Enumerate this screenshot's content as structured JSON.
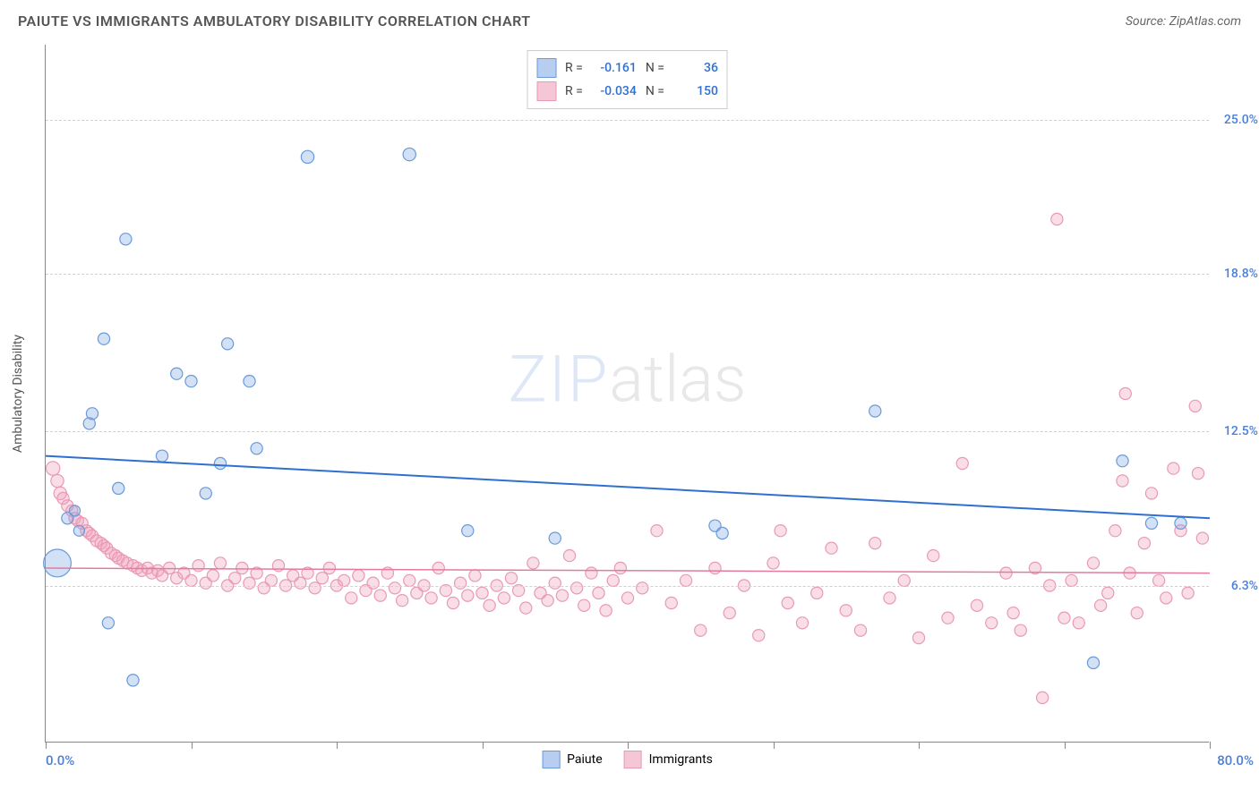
{
  "title": "PAIUTE VS IMMIGRANTS AMBULATORY DISABILITY CORRELATION CHART",
  "source": "Source: ZipAtlas.com",
  "ylabel": "Ambulatory Disability",
  "watermark": {
    "part1": "ZIP",
    "part2": "atlas"
  },
  "chart": {
    "type": "scatter",
    "xlim": [
      0,
      80
    ],
    "ylim": [
      0,
      28
    ],
    "x_min_label": "0.0%",
    "x_max_label": "80.0%",
    "xtick_positions": [
      0,
      10,
      20,
      30,
      40,
      50,
      60,
      70,
      80
    ],
    "y_gridlines": [
      6.3,
      12.5,
      18.8,
      25.0
    ],
    "y_gridline_labels": [
      "6.3%",
      "12.5%",
      "18.8%",
      "25.0%"
    ],
    "y_tick_color": "#4a7fd8",
    "x_label_color": "#4a7fd8",
    "background_color": "#ffffff",
    "grid_color": "#d0d0d0",
    "axis_color": "#888888"
  },
  "series": [
    {
      "name": "Paiute",
      "color_fill": "rgba(130,170,230,0.35)",
      "color_stroke": "#6a9ad8",
      "swatch_fill": "#b8cef0",
      "swatch_border": "#6a9ad8",
      "R": "-0.161",
      "N": "36",
      "trend": {
        "x1": 0,
        "y1": 11.5,
        "x2": 80,
        "y2": 9.0,
        "color": "#2f6fd0",
        "width": 2
      },
      "points": [
        [
          0.8,
          7.2,
          28
        ],
        [
          1.5,
          9.0,
          12
        ],
        [
          2,
          9.3,
          11
        ],
        [
          2.3,
          8.5,
          11
        ],
        [
          3,
          12.8,
          12
        ],
        [
          3.2,
          13.2,
          12
        ],
        [
          4,
          16.2,
          12
        ],
        [
          4.3,
          4.8,
          12
        ],
        [
          5,
          10.2,
          12
        ],
        [
          5.5,
          20.2,
          12
        ],
        [
          6,
          2.5,
          12
        ],
        [
          8,
          11.5,
          12
        ],
        [
          9,
          14.8,
          12
        ],
        [
          10,
          14.5,
          12
        ],
        [
          11,
          10.0,
          12
        ],
        [
          12,
          11.2,
          12
        ],
        [
          12.5,
          16.0,
          12
        ],
        [
          14,
          14.5,
          12
        ],
        [
          14.5,
          11.8,
          12
        ],
        [
          18,
          23.5,
          13
        ],
        [
          25,
          23.6,
          13
        ],
        [
          29,
          8.5,
          12
        ],
        [
          35,
          8.2,
          12
        ],
        [
          46,
          8.7,
          12
        ],
        [
          46.5,
          8.4,
          12
        ],
        [
          57,
          13.3,
          12
        ],
        [
          72,
          3.2,
          12
        ],
        [
          74,
          11.3,
          12
        ],
        [
          76,
          8.8,
          12
        ],
        [
          78,
          8.8,
          12
        ]
      ]
    },
    {
      "name": "Immigrants",
      "color_fill": "rgba(240,160,185,0.35)",
      "color_stroke": "#e89ab5",
      "swatch_fill": "#f5c6d6",
      "swatch_border": "#e89ab5",
      "R": "-0.034",
      "N": "150",
      "trend": {
        "x1": 0,
        "y1": 7.0,
        "x2": 80,
        "y2": 6.8,
        "color": "#e47aa0",
        "width": 1.5
      },
      "points": [
        [
          0.5,
          11.0,
          14
        ],
        [
          0.8,
          10.5,
          13
        ],
        [
          1,
          10.0,
          13
        ],
        [
          1.2,
          9.8,
          12
        ],
        [
          1.5,
          9.5,
          12
        ],
        [
          1.8,
          9.3,
          12
        ],
        [
          2,
          9.0,
          12
        ],
        [
          2.2,
          8.9,
          12
        ],
        [
          2.5,
          8.8,
          12
        ],
        [
          2.8,
          8.5,
          12
        ],
        [
          3,
          8.4,
          12
        ],
        [
          3.2,
          8.3,
          12
        ],
        [
          3.5,
          8.1,
          12
        ],
        [
          3.8,
          8.0,
          12
        ],
        [
          4,
          7.9,
          12
        ],
        [
          4.2,
          7.8,
          12
        ],
        [
          4.5,
          7.6,
          12
        ],
        [
          4.8,
          7.5,
          12
        ],
        [
          5,
          7.4,
          12
        ],
        [
          5.3,
          7.3,
          12
        ],
        [
          5.6,
          7.2,
          12
        ],
        [
          6,
          7.1,
          12
        ],
        [
          6.3,
          7.0,
          12
        ],
        [
          6.6,
          6.9,
          12
        ],
        [
          7,
          7.0,
          12
        ],
        [
          7.3,
          6.8,
          12
        ],
        [
          7.7,
          6.9,
          12
        ],
        [
          8,
          6.7,
          12
        ],
        [
          8.5,
          7.0,
          12
        ],
        [
          9,
          6.6,
          12
        ],
        [
          9.5,
          6.8,
          12
        ],
        [
          10,
          6.5,
          12
        ],
        [
          10.5,
          7.1,
          12
        ],
        [
          11,
          6.4,
          12
        ],
        [
          11.5,
          6.7,
          12
        ],
        [
          12,
          7.2,
          12
        ],
        [
          12.5,
          6.3,
          12
        ],
        [
          13,
          6.6,
          12
        ],
        [
          13.5,
          7.0,
          12
        ],
        [
          14,
          6.4,
          12
        ],
        [
          14.5,
          6.8,
          12
        ],
        [
          15,
          6.2,
          12
        ],
        [
          15.5,
          6.5,
          12
        ],
        [
          16,
          7.1,
          12
        ],
        [
          16.5,
          6.3,
          12
        ],
        [
          17,
          6.7,
          12
        ],
        [
          17.5,
          6.4,
          12
        ],
        [
          18,
          6.8,
          12
        ],
        [
          18.5,
          6.2,
          12
        ],
        [
          19,
          6.6,
          12
        ],
        [
          19.5,
          7.0,
          12
        ],
        [
          20,
          6.3,
          12
        ],
        [
          20.5,
          6.5,
          12
        ],
        [
          21,
          5.8,
          12
        ],
        [
          21.5,
          6.7,
          12
        ],
        [
          22,
          6.1,
          12
        ],
        [
          22.5,
          6.4,
          12
        ],
        [
          23,
          5.9,
          12
        ],
        [
          23.5,
          6.8,
          12
        ],
        [
          24,
          6.2,
          12
        ],
        [
          24.5,
          5.7,
          12
        ],
        [
          25,
          6.5,
          12
        ],
        [
          25.5,
          6.0,
          12
        ],
        [
          26,
          6.3,
          12
        ],
        [
          26.5,
          5.8,
          12
        ],
        [
          27,
          7.0,
          12
        ],
        [
          27.5,
          6.1,
          12
        ],
        [
          28,
          5.6,
          12
        ],
        [
          28.5,
          6.4,
          12
        ],
        [
          29,
          5.9,
          12
        ],
        [
          29.5,
          6.7,
          12
        ],
        [
          30,
          6.0,
          12
        ],
        [
          30.5,
          5.5,
          12
        ],
        [
          31,
          6.3,
          12
        ],
        [
          31.5,
          5.8,
          12
        ],
        [
          32,
          6.6,
          12
        ],
        [
          32.5,
          6.1,
          12
        ],
        [
          33,
          5.4,
          12
        ],
        [
          33.5,
          7.2,
          12
        ],
        [
          34,
          6.0,
          12
        ],
        [
          34.5,
          5.7,
          12
        ],
        [
          35,
          6.4,
          12
        ],
        [
          35.5,
          5.9,
          12
        ],
        [
          36,
          7.5,
          12
        ],
        [
          36.5,
          6.2,
          12
        ],
        [
          37,
          5.5,
          12
        ],
        [
          37.5,
          6.8,
          12
        ],
        [
          38,
          6.0,
          12
        ],
        [
          38.5,
          5.3,
          12
        ],
        [
          39,
          6.5,
          12
        ],
        [
          39.5,
          7.0,
          12
        ],
        [
          40,
          5.8,
          12
        ],
        [
          41,
          6.2,
          12
        ],
        [
          42,
          8.5,
          12
        ],
        [
          43,
          5.6,
          12
        ],
        [
          44,
          6.5,
          12
        ],
        [
          45,
          4.5,
          12
        ],
        [
          46,
          7.0,
          12
        ],
        [
          47,
          5.2,
          12
        ],
        [
          48,
          6.3,
          12
        ],
        [
          49,
          4.3,
          12
        ],
        [
          50,
          7.2,
          12
        ],
        [
          50.5,
          8.5,
          12
        ],
        [
          51,
          5.6,
          12
        ],
        [
          52,
          4.8,
          12
        ],
        [
          53,
          6.0,
          12
        ],
        [
          54,
          7.8,
          12
        ],
        [
          55,
          5.3,
          12
        ],
        [
          56,
          4.5,
          12
        ],
        [
          57,
          8.0,
          12
        ],
        [
          58,
          5.8,
          12
        ],
        [
          59,
          6.5,
          12
        ],
        [
          60,
          4.2,
          12
        ],
        [
          61,
          7.5,
          12
        ],
        [
          62,
          5.0,
          12
        ],
        [
          63,
          11.2,
          12
        ],
        [
          64,
          5.5,
          12
        ],
        [
          65,
          4.8,
          12
        ],
        [
          66,
          6.8,
          12
        ],
        [
          66.5,
          5.2,
          12
        ],
        [
          67,
          4.5,
          12
        ],
        [
          68,
          7.0,
          12
        ],
        [
          68.5,
          1.8,
          12
        ],
        [
          69,
          6.3,
          12
        ],
        [
          69.5,
          21.0,
          12
        ],
        [
          70,
          5.0,
          12
        ],
        [
          70.5,
          6.5,
          12
        ],
        [
          71,
          4.8,
          12
        ],
        [
          72,
          7.2,
          12
        ],
        [
          72.5,
          5.5,
          12
        ],
        [
          73,
          6.0,
          12
        ],
        [
          73.5,
          8.5,
          12
        ],
        [
          74,
          10.5,
          12
        ],
        [
          74.2,
          14.0,
          12
        ],
        [
          74.5,
          6.8,
          12
        ],
        [
          75,
          5.2,
          12
        ],
        [
          75.5,
          8.0,
          12
        ],
        [
          76,
          10.0,
          12
        ],
        [
          76.5,
          6.5,
          12
        ],
        [
          77,
          5.8,
          12
        ],
        [
          77.5,
          11.0,
          12
        ],
        [
          78,
          8.5,
          12
        ],
        [
          78.5,
          6.0,
          12
        ],
        [
          79,
          13.5,
          12
        ],
        [
          79.2,
          10.8,
          12
        ],
        [
          79.5,
          8.2,
          12
        ]
      ]
    }
  ],
  "bottom_legend": [
    {
      "label": "Paiute",
      "fill": "#b8cef0",
      "border": "#6a9ad8"
    },
    {
      "label": "Immigrants",
      "fill": "#f5c6d6",
      "border": "#e89ab5"
    }
  ]
}
